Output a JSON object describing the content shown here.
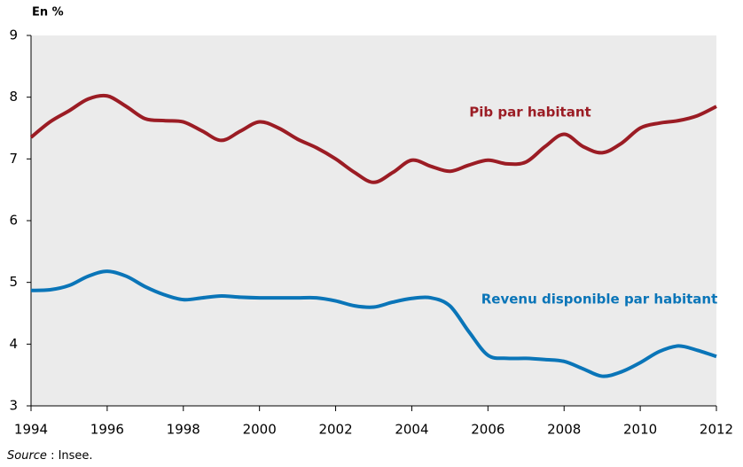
{
  "chart_data": {
    "type": "line",
    "ylabel": "En %",
    "source": {
      "label": "Source",
      "text": " : Insee."
    },
    "x": [
      1994,
      1994.5,
      1995,
      1995.5,
      1996,
      1996.5,
      1997,
      1997.5,
      1998,
      1998.5,
      1999,
      1999.5,
      2000,
      2000.5,
      2001,
      2001.5,
      2002,
      2002.5,
      2003,
      2003.5,
      2004,
      2004.5,
      2005,
      2005.5,
      2006,
      2006.5,
      2007,
      2007.5,
      2008,
      2008.5,
      2009,
      2009.5,
      2010,
      2010.5,
      2011,
      2011.5,
      2012
    ],
    "series": [
      {
        "name": "Pib par habitant",
        "color": "#9b1c24",
        "values": [
          7.35,
          7.6,
          7.78,
          7.97,
          8.02,
          7.85,
          7.65,
          7.62,
          7.6,
          7.45,
          7.3,
          7.45,
          7.6,
          7.5,
          7.32,
          7.18,
          7.0,
          6.78,
          6.62,
          6.78,
          6.98,
          6.88,
          6.8,
          6.9,
          6.98,
          6.92,
          6.95,
          7.2,
          7.4,
          7.2,
          7.1,
          7.25,
          7.5,
          7.58,
          7.62,
          7.7,
          7.85
        ]
      },
      {
        "name": "Revenu disponible par habitant",
        "color": "#0a75b8",
        "values": [
          4.87,
          4.88,
          4.95,
          5.1,
          5.18,
          5.1,
          4.93,
          4.8,
          4.72,
          4.75,
          4.78,
          4.76,
          4.75,
          4.75,
          4.75,
          4.75,
          4.7,
          4.62,
          4.6,
          4.68,
          4.74,
          4.75,
          4.62,
          4.2,
          3.82,
          3.77,
          3.77,
          3.75,
          3.72,
          3.6,
          3.48,
          3.55,
          3.7,
          3.88,
          3.97,
          3.9,
          3.8
        ]
      }
    ],
    "xlim": [
      1994,
      2012
    ],
    "xticks": [
      1994,
      1996,
      1998,
      2000,
      2002,
      2004,
      2006,
      2008,
      2010,
      2012
    ],
    "ylim": [
      3,
      9
    ],
    "yticks": [
      3,
      4,
      5,
      6,
      7,
      8,
      9
    ],
    "background": "#ebebeb"
  }
}
